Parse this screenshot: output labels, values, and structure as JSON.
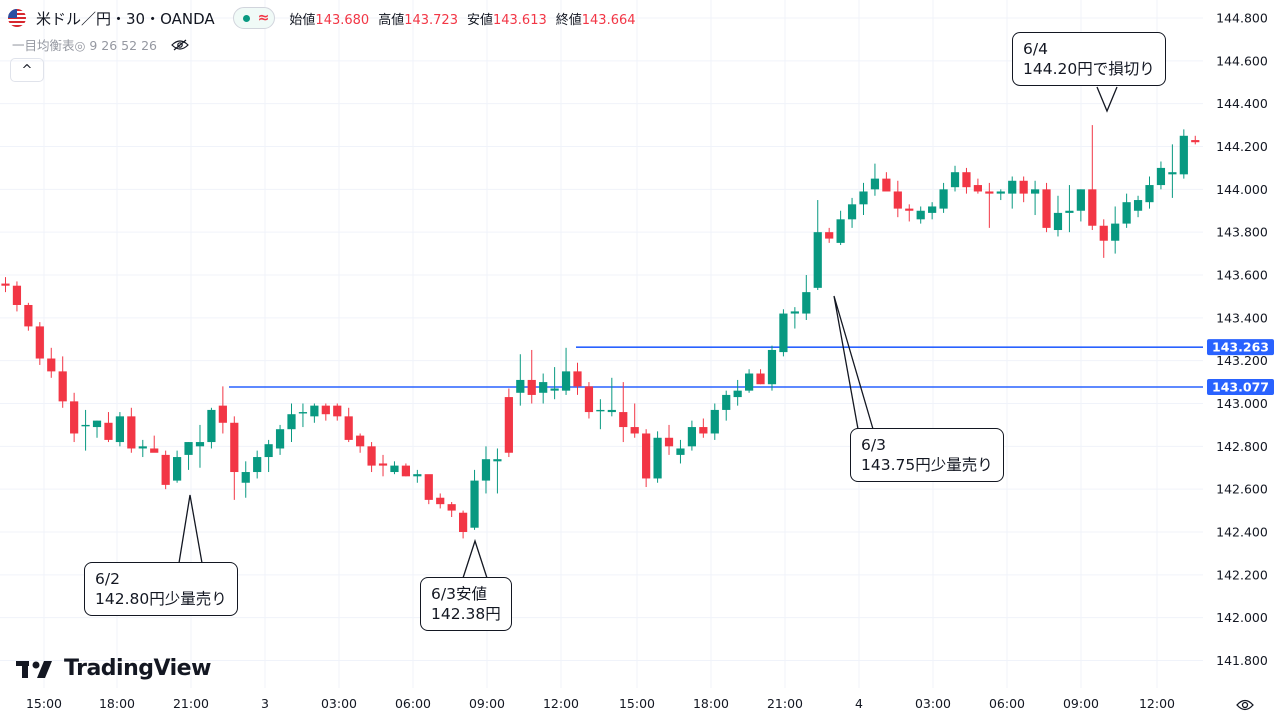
{
  "header": {
    "symbol": "米ドル／円・30・OANDA",
    "market_status_icon": "wave-icon",
    "ohlc": [
      {
        "label": "始値",
        "value": "143.680"
      },
      {
        "label": "高値",
        "value": "143.723"
      },
      {
        "label": "安値",
        "value": "143.613"
      },
      {
        "label": "終値",
        "value": "143.664"
      }
    ]
  },
  "indicator": {
    "name": "一目均衡表◎ 9 26 52 26",
    "visibility_icon": "eye-off-icon"
  },
  "collapse_label": "^",
  "logo_text": "TradingView",
  "annotations": {
    "a1": {
      "line1": "6/2",
      "line2": "142.80円少量売り"
    },
    "a2": {
      "line1": "6/3安値",
      "line2": "142.38円"
    },
    "a3": {
      "line1": "6/3",
      "line2": "143.75円少量売り"
    },
    "a4": {
      "line1": "6/4",
      "line2": "144.20円で損切り"
    }
  },
  "colors": {
    "up": "#089981",
    "down": "#f23645",
    "level_line": "#2962ff",
    "grid": "#f0f3fa"
  },
  "chart_data": {
    "type": "candlestick",
    "x_axis_labels": [
      "15:00",
      "18:00",
      "21:00",
      "3",
      "03:00",
      "06:00",
      "09:00",
      "12:00",
      "15:00",
      "18:00",
      "21:00",
      "4",
      "03:00",
      "06:00",
      "09:00",
      "12:00"
    ],
    "y_axis_ticks": [
      "141.800",
      "142.000",
      "142.200",
      "142.400",
      "142.600",
      "142.800",
      "143.000",
      "143.200",
      "143.400",
      "143.600",
      "143.800",
      "144.000",
      "144.200",
      "144.400",
      "144.600",
      "144.800"
    ],
    "ylim": [
      141.7,
      144.86
    ],
    "horizontal_levels": [
      {
        "label": "143.263",
        "value": 143.263,
        "start_time": "6/3 12:30"
      },
      {
        "label": "143.077",
        "value": 143.077,
        "start_time": "6/2 22:30"
      }
    ],
    "candles": [
      [
        143.56,
        143.59,
        143.52,
        143.55
      ],
      [
        143.55,
        143.57,
        143.43,
        143.46
      ],
      [
        143.46,
        143.47,
        143.34,
        143.36
      ],
      [
        143.36,
        143.38,
        143.18,
        143.21
      ],
      [
        143.21,
        143.26,
        143.12,
        143.15
      ],
      [
        143.15,
        143.22,
        142.98,
        143.01
      ],
      [
        143.01,
        143.05,
        142.82,
        142.86
      ],
      [
        142.9,
        142.97,
        142.78,
        142.9
      ],
      [
        142.89,
        142.92,
        142.84,
        142.92
      ],
      [
        142.91,
        142.96,
        142.82,
        142.83
      ],
      [
        142.82,
        142.96,
        142.8,
        142.94
      ],
      [
        142.94,
        142.98,
        142.77,
        142.79
      ],
      [
        142.79,
        142.83,
        142.75,
        142.8
      ],
      [
        142.79,
        142.85,
        142.78,
        142.77
      ],
      [
        142.76,
        142.78,
        142.6,
        142.62
      ],
      [
        142.64,
        142.78,
        142.63,
        142.75
      ],
      [
        142.76,
        142.82,
        142.69,
        142.82
      ],
      [
        142.8,
        142.9,
        142.7,
        142.82
      ],
      [
        142.82,
        142.98,
        142.79,
        142.97
      ],
      [
        142.99,
        143.08,
        142.86,
        142.91
      ],
      [
        142.91,
        142.94,
        142.55,
        142.68
      ],
      [
        142.63,
        142.73,
        142.56,
        142.68
      ],
      [
        142.68,
        142.78,
        142.65,
        142.75
      ],
      [
        142.75,
        142.83,
        142.68,
        142.81
      ],
      [
        142.79,
        142.9,
        142.76,
        142.88
      ],
      [
        142.88,
        143.0,
        142.82,
        142.95
      ],
      [
        142.96,
        143.0,
        142.89,
        142.96
      ],
      [
        142.94,
        143.0,
        142.91,
        142.99
      ],
      [
        142.99,
        143.0,
        142.92,
        142.95
      ],
      [
        142.99,
        143.0,
        142.92,
        142.94
      ],
      [
        142.94,
        142.98,
        142.82,
        142.83
      ],
      [
        142.85,
        142.86,
        142.77,
        142.8
      ],
      [
        142.8,
        142.82,
        142.68,
        142.71
      ],
      [
        142.72,
        142.76,
        142.66,
        142.71
      ],
      [
        142.68,
        142.73,
        142.67,
        142.71
      ],
      [
        142.71,
        142.72,
        142.66,
        142.66
      ],
      [
        142.66,
        142.69,
        142.63,
        142.67
      ],
      [
        142.67,
        142.66,
        142.53,
        142.55
      ],
      [
        142.56,
        142.58,
        142.51,
        142.53
      ],
      [
        142.53,
        142.54,
        142.47,
        142.5
      ],
      [
        142.49,
        142.5,
        142.37,
        142.4
      ],
      [
        142.42,
        142.69,
        142.41,
        142.64
      ],
      [
        142.64,
        142.8,
        142.58,
        142.74
      ],
      [
        142.73,
        142.79,
        142.58,
        142.74
      ],
      [
        143.03,
        143.07,
        142.75,
        142.77
      ],
      [
        143.05,
        143.23,
        142.99,
        143.11
      ],
      [
        143.11,
        143.25,
        143.0,
        143.04
      ],
      [
        143.05,
        143.14,
        143.0,
        143.1
      ],
      [
        143.06,
        143.17,
        143.02,
        143.07
      ],
      [
        143.06,
        143.26,
        143.04,
        143.15
      ],
      [
        143.15,
        143.19,
        143.04,
        143.08
      ],
      [
        143.08,
        143.1,
        142.93,
        142.96
      ],
      [
        142.97,
        143.02,
        142.88,
        142.97
      ],
      [
        142.96,
        143.12,
        142.94,
        142.97
      ],
      [
        142.96,
        143.1,
        142.82,
        142.89
      ],
      [
        142.89,
        143.0,
        142.84,
        142.86
      ],
      [
        142.86,
        142.88,
        142.61,
        142.65
      ],
      [
        142.65,
        142.87,
        142.63,
        142.84
      ],
      [
        142.84,
        142.9,
        142.76,
        142.8
      ],
      [
        142.76,
        142.83,
        142.72,
        142.79
      ],
      [
        142.8,
        142.92,
        142.78,
        142.89
      ],
      [
        142.89,
        142.93,
        142.84,
        142.86
      ],
      [
        142.86,
        143.0,
        142.83,
        142.97
      ],
      [
        142.97,
        143.06,
        142.92,
        143.04
      ],
      [
        143.03,
        143.11,
        142.99,
        143.06
      ],
      [
        143.06,
        143.16,
        143.05,
        143.14
      ],
      [
        143.14,
        143.16,
        143.09,
        143.09
      ],
      [
        143.09,
        143.27,
        143.06,
        143.25
      ],
      [
        143.24,
        143.44,
        143.22,
        143.42
      ],
      [
        143.42,
        143.45,
        143.35,
        143.43
      ],
      [
        143.42,
        143.6,
        143.39,
        143.52
      ],
      [
        143.54,
        143.95,
        143.53,
        143.8
      ],
      [
        143.8,
        143.82,
        143.75,
        143.77
      ],
      [
        143.75,
        143.9,
        143.74,
        143.86
      ],
      [
        143.86,
        143.96,
        143.82,
        143.93
      ],
      [
        143.93,
        144.03,
        143.88,
        143.99
      ],
      [
        144.0,
        144.12,
        143.97,
        144.05
      ],
      [
        144.05,
        144.08,
        144.01,
        143.99
      ],
      [
        143.99,
        144.04,
        143.87,
        143.91
      ],
      [
        143.91,
        143.93,
        143.85,
        143.9
      ],
      [
        143.86,
        143.92,
        143.84,
        143.9
      ],
      [
        143.89,
        143.94,
        143.86,
        143.92
      ],
      [
        143.91,
        144.03,
        143.89,
        144.0
      ],
      [
        144.01,
        144.11,
        143.99,
        144.08
      ],
      [
        144.08,
        144.1,
        143.98,
        144.01
      ],
      [
        144.02,
        144.05,
        143.98,
        143.99
      ],
      [
        143.99,
        144.03,
        143.82,
        143.98
      ],
      [
        143.98,
        144.0,
        143.95,
        143.99
      ],
      [
        143.98,
        144.06,
        143.91,
        144.04
      ],
      [
        144.04,
        144.06,
        143.94,
        143.98
      ],
      [
        143.98,
        144.04,
        143.88,
        144.0
      ],
      [
        144.0,
        144.03,
        143.8,
        143.82
      ],
      [
        143.81,
        143.97,
        143.78,
        143.89
      ],
      [
        143.89,
        144.02,
        143.8,
        143.9
      ],
      [
        143.9,
        144.0,
        143.85,
        144.0
      ],
      [
        144.0,
        144.3,
        143.81,
        143.83
      ],
      [
        143.83,
        143.86,
        143.68,
        143.76
      ],
      [
        143.76,
        143.92,
        143.7,
        143.84
      ],
      [
        143.84,
        143.98,
        143.82,
        143.94
      ],
      [
        143.9,
        143.97,
        143.87,
        143.95
      ],
      [
        143.94,
        144.06,
        143.91,
        144.02
      ],
      [
        144.02,
        144.13,
        144.0,
        144.1
      ],
      [
        144.07,
        144.21,
        143.96,
        144.08
      ],
      [
        144.07,
        144.28,
        144.05,
        144.25
      ],
      [
        144.23,
        144.25,
        144.21,
        144.22
      ]
    ]
  }
}
